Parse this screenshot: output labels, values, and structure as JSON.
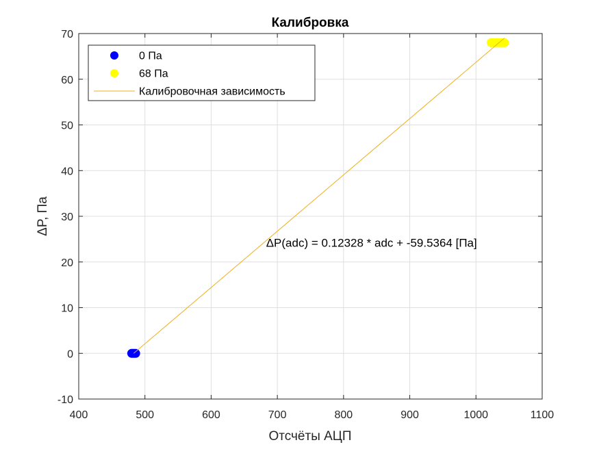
{
  "chart_data": {
    "type": "scatter",
    "title": "Калибровка",
    "xlabel": "Отсчёты АЦП",
    "ylabel": "ΔP, Па",
    "xlim": [
      400,
      1100
    ],
    "ylim": [
      -10,
      70
    ],
    "xticks": [
      400,
      500,
      600,
      700,
      800,
      900,
      1000,
      1100
    ],
    "yticks": [
      -10,
      0,
      10,
      20,
      30,
      40,
      50,
      60,
      70
    ],
    "grid": true,
    "legend_position": "top-left",
    "series": [
      {
        "name": "0 Па",
        "kind": "scatter",
        "color": "#0000ff",
        "points": [
          [
            480,
            0
          ],
          [
            482,
            0
          ],
          [
            484,
            0
          ],
          [
            486,
            0
          ]
        ]
      },
      {
        "name": "68 Па",
        "kind": "scatter",
        "color": "#ffff00",
        "points": [
          [
            1023,
            68
          ],
          [
            1027,
            68
          ],
          [
            1031,
            68
          ],
          [
            1035,
            68
          ],
          [
            1039,
            68
          ],
          [
            1043,
            68
          ]
        ]
      },
      {
        "name": "Калибровочная зависимость",
        "kind": "line",
        "color": "#edb120",
        "points": [
          [
            483,
            0
          ],
          [
            1043,
            69
          ]
        ]
      }
    ],
    "annotations": [
      {
        "text": "ΔP(adc) = 0.12328 * adc + -59.5364 [Па]",
        "x": 683,
        "y": 23.3
      }
    ]
  }
}
